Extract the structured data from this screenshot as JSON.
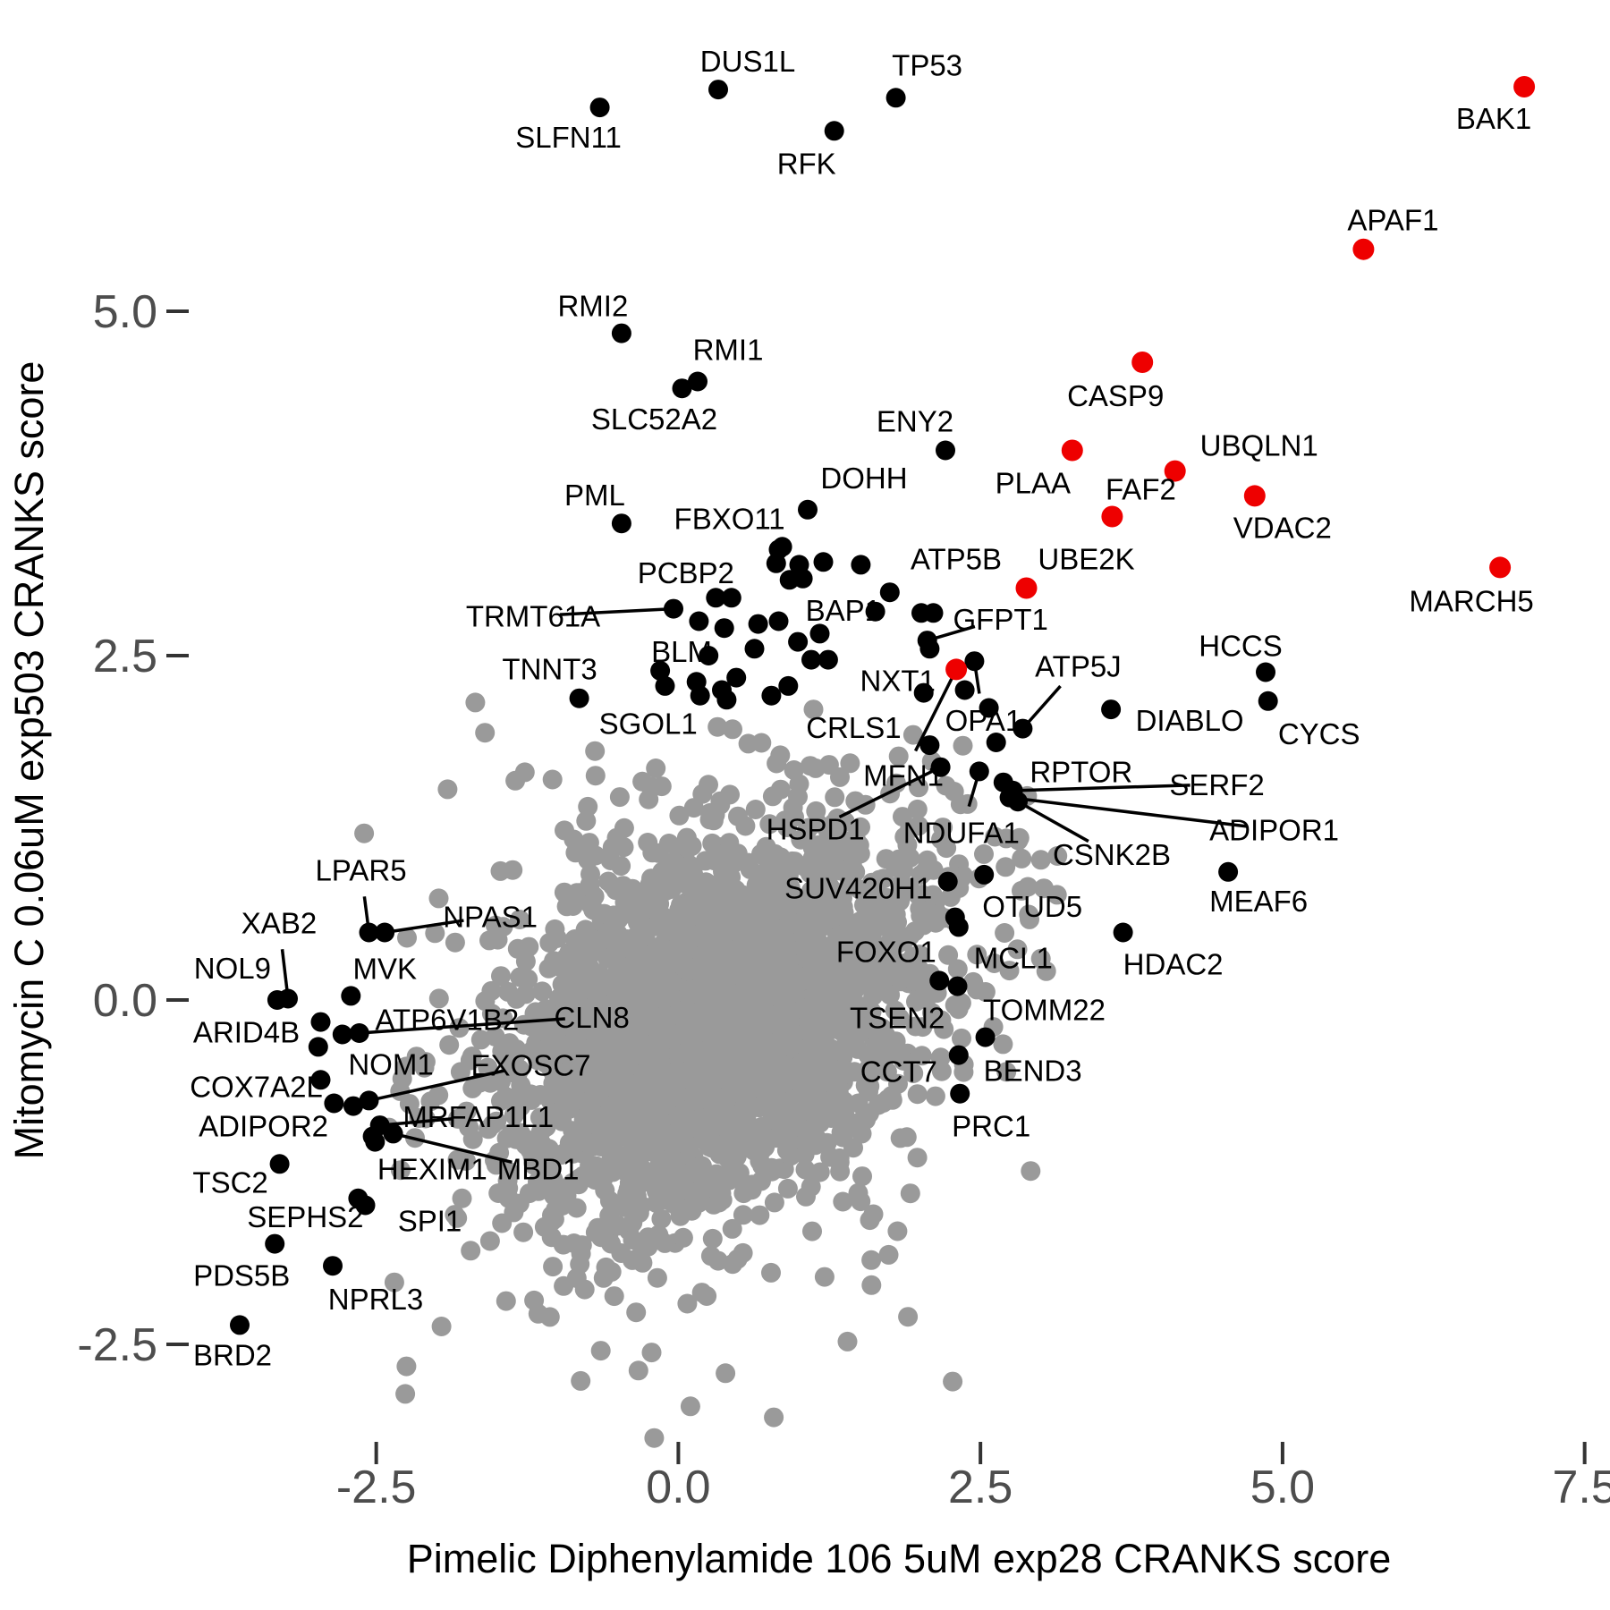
{
  "chart_data": {
    "type": "scatter",
    "title": "",
    "xlabel": "Pimelic Diphenylamide 106 5uM exp28 CRANKS score",
    "ylabel": "Mitomycin C 0.06uM exp503 CRANKS score",
    "xlim": [
      -4.0,
      7.7
    ],
    "ylim": [
      -3.1,
      7.3
    ],
    "grid": false,
    "legend": "none",
    "x_ticks": [
      -2.5,
      0.0,
      2.5,
      5.0,
      7.5
    ],
    "x_tick_labels": [
      "-2.5",
      "0.0",
      "2.5",
      "5.0",
      "7.5"
    ],
    "y_ticks": [
      -2.5,
      0.0,
      2.5,
      5.0
    ],
    "y_tick_labels": [
      "-2.5",
      "0.0",
      "2.5",
      "5.0"
    ],
    "labeled_points": [
      {
        "gene": "DUS1L",
        "x": 0.33,
        "y": 6.61,
        "color": "black",
        "off": [
          33,
          -32
        ],
        "leader": false
      },
      {
        "gene": "SLFN11",
        "x": -0.65,
        "y": 6.48,
        "color": "black",
        "off": [
          -35,
          33
        ],
        "leader": false
      },
      {
        "gene": "TP53",
        "x": 1.8,
        "y": 6.55,
        "color": "black",
        "off": [
          35,
          -37
        ],
        "leader": false
      },
      {
        "gene": "RFK",
        "x": 1.29,
        "y": 6.31,
        "color": "black",
        "off": [
          -31,
          36
        ],
        "leader": false
      },
      {
        "gene": "BAK1",
        "x": 7.0,
        "y": 6.63,
        "color": "red",
        "off": [
          -34,
          35
        ],
        "leader": false
      },
      {
        "gene": "APAF1",
        "x": 5.67,
        "y": 5.45,
        "color": "red",
        "off": [
          33,
          -33
        ],
        "leader": false
      },
      {
        "gene": "RMI2",
        "x": -0.47,
        "y": 4.84,
        "color": "black",
        "off": [
          -32,
          -31
        ],
        "leader": false
      },
      {
        "gene": "RMI1",
        "x": 0.16,
        "y": 4.49,
        "color": "black",
        "off": [
          34,
          -36
        ],
        "leader": false
      },
      {
        "gene": "SLC52A2",
        "x": 0.03,
        "y": 4.44,
        "color": "black",
        "off": [
          -31,
          34
        ],
        "leader": false
      },
      {
        "gene": "CASP9",
        "x": 3.84,
        "y": 4.63,
        "color": "red",
        "off": [
          -30,
          37
        ],
        "leader": false
      },
      {
        "gene": "ENY2",
        "x": 2.21,
        "y": 3.99,
        "color": "black",
        "off": [
          -34,
          -33
        ],
        "leader": false
      },
      {
        "gene": "UBQLN1",
        "x": 4.11,
        "y": 3.84,
        "color": "red",
        "off": [
          94,
          -29
        ],
        "leader": false
      },
      {
        "gene": "PLAA",
        "x": 3.26,
        "y": 3.99,
        "color": "red",
        "off": [
          -44,
          36
        ],
        "leader": false
      },
      {
        "gene": "FAF2",
        "x": 3.59,
        "y": 3.51,
        "color": "red",
        "off": [
          32,
          -31
        ],
        "leader": false
      },
      {
        "gene": "VDAC2",
        "x": 4.77,
        "y": 3.66,
        "color": "red",
        "off": [
          31,
          35
        ],
        "leader": false
      },
      {
        "gene": "DOHH",
        "x": 1.07,
        "y": 3.56,
        "color": "black",
        "off": [
          63,
          -36
        ],
        "leader": false
      },
      {
        "gene": "PML",
        "x": -0.47,
        "y": 3.46,
        "color": "black",
        "off": [
          -30,
          -32
        ],
        "leader": false
      },
      {
        "gene": "FBXO11",
        "x": 0.86,
        "y": 3.29,
        "color": "black",
        "off": [
          -59,
          -32
        ],
        "leader": false
      },
      {
        "gene": "MARCH5",
        "x": 6.8,
        "y": 3.14,
        "color": "red",
        "off": [
          -32,
          37
        ],
        "leader": false
      },
      {
        "gene": "ATP5B",
        "x": 2.01,
        "y": 2.81,
        "color": "black",
        "off": [
          39,
          -61
        ],
        "leader": false
      },
      {
        "gene": "UBE2K",
        "x": 2.88,
        "y": 2.99,
        "color": "red",
        "off": [
          67,
          -33
        ],
        "leader": false
      },
      {
        "gene": "PCBP2",
        "x": 0.81,
        "y": 3.17,
        "color": "black",
        "off": [
          -101,
          10
        ],
        "leader": false
      },
      {
        "gene": "TRMT61A",
        "x": -0.04,
        "y": 2.84,
        "color": "black",
        "off": [
          -157,
          8
        ],
        "leader": true
      },
      {
        "gene": "BAP1",
        "x": 1.75,
        "y": 2.96,
        "color": "black",
        "off": [
          -52,
          20
        ],
        "leader": false
      },
      {
        "gene": "GFPT1",
        "x": 2.06,
        "y": 2.61,
        "color": "black",
        "off": [
          82,
          -24
        ],
        "leader": true
      },
      {
        "gene": "BLM",
        "x": -0.15,
        "y": 2.39,
        "color": "black",
        "off": [
          24,
          -22
        ],
        "leader": false
      },
      {
        "gene": "HCCS",
        "x": 4.86,
        "y": 2.38,
        "color": "black",
        "off": [
          -28,
          -30
        ],
        "leader": false
      },
      {
        "gene": "TNNT3",
        "x": -0.82,
        "y": 2.19,
        "color": "black",
        "off": [
          -33,
          -33
        ],
        "leader": false
      },
      {
        "gene": "NXT1",
        "x": 2.03,
        "y": 2.23,
        "color": "black",
        "off": [
          -29,
          -14
        ],
        "leader": false
      },
      {
        "gene": "ATP5J",
        "x": 2.85,
        "y": 1.97,
        "color": "black",
        "off": [
          62,
          -70
        ],
        "leader": true
      },
      {
        "gene": "SGOL1",
        "x": 0.18,
        "y": 2.21,
        "color": "black",
        "off": [
          -58,
          31
        ],
        "leader": false
      },
      {
        "gene": "CRLS1",
        "x": 2.08,
        "y": 1.85,
        "color": "black",
        "off": [
          -85,
          -20
        ],
        "leader": false
      },
      {
        "gene": "OPA1",
        "x": 2.45,
        "y": 2.46,
        "color": "black",
        "off": [
          10,
          66
        ],
        "leader": true
      },
      {
        "gene": "DIABLO",
        "x": 3.58,
        "y": 2.11,
        "color": "black",
        "off": [
          88,
          12
        ],
        "leader": false
      },
      {
        "gene": "CYCS",
        "x": 4.88,
        "y": 2.17,
        "color": "black",
        "off": [
          57,
          36
        ],
        "leader": false
      },
      {
        "gene": "MFN1",
        "x": 2.3,
        "y": 2.4,
        "color": "red",
        "off": [
          -59,
          118
        ],
        "leader": true
      },
      {
        "gene": "RPTOR",
        "x": 2.69,
        "y": 1.58,
        "color": "black",
        "off": [
          87,
          -12
        ],
        "leader": false
      },
      {
        "gene": "SERF2",
        "x": 2.77,
        "y": 1.52,
        "color": "black",
        "off": [
          228,
          -7
        ],
        "leader": true
      },
      {
        "gene": "HSPD1",
        "x": 2.17,
        "y": 1.69,
        "color": "black",
        "off": [
          -140,
          69
        ],
        "leader": true
      },
      {
        "gene": "NDUFA1",
        "x": 2.49,
        "y": 1.66,
        "color": "black",
        "off": [
          -20,
          68
        ],
        "leader": true
      },
      {
        "gene": "ADIPOR1",
        "x": 2.74,
        "y": 1.47,
        "color": "black",
        "off": [
          296,
          36
        ],
        "leader": true
      },
      {
        "gene": "CSNK2B",
        "x": 2.81,
        "y": 1.44,
        "color": "black",
        "off": [
          105,
          59
        ],
        "leader": true
      },
      {
        "gene": "SUV420H1",
        "x": 2.23,
        "y": 0.86,
        "color": "black",
        "off": [
          -100,
          7
        ],
        "leader": false
      },
      {
        "gene": "OTUD5",
        "x": 2.53,
        "y": 0.91,
        "color": "black",
        "off": [
          54,
          35
        ],
        "leader": false
      },
      {
        "gene": "MEAF6",
        "x": 4.55,
        "y": 0.93,
        "color": "black",
        "off": [
          34,
          32
        ],
        "leader": false
      },
      {
        "gene": "FOXO1",
        "x": 2.29,
        "y": 0.6,
        "color": "black",
        "off": [
          -77,
          38
        ],
        "leader": false
      },
      {
        "gene": "MCL1",
        "x": 2.32,
        "y": 0.53,
        "color": "black",
        "off": [
          61,
          34
        ],
        "leader": false
      },
      {
        "gene": "HDAC2",
        "x": 3.68,
        "y": 0.49,
        "color": "black",
        "off": [
          56,
          35
        ],
        "leader": false
      },
      {
        "gene": "TSEN2",
        "x": 2.16,
        "y": 0.14,
        "color": "black",
        "off": [
          -47,
          41
        ],
        "leader": false
      },
      {
        "gene": "TOMM22",
        "x": 2.31,
        "y": 0.1,
        "color": "black",
        "off": [
          97,
          26
        ],
        "leader": false
      },
      {
        "gene": "CCT7",
        "x": 2.32,
        "y": -0.4,
        "color": "black",
        "off": [
          -67,
          18
        ],
        "leader": false
      },
      {
        "gene": "BEND3",
        "x": 2.54,
        "y": -0.27,
        "color": "black",
        "off": [
          53,
          37
        ],
        "leader": false
      },
      {
        "gene": "PRC1",
        "x": 2.33,
        "y": -0.68,
        "color": "black",
        "off": [
          35,
          36
        ],
        "leader": false
      },
      {
        "gene": "LPAR5",
        "x": -2.56,
        "y": 0.49,
        "color": "black",
        "off": [
          -9,
          -70
        ],
        "leader": true
      },
      {
        "gene": "NPAS1",
        "x": -2.43,
        "y": 0.49,
        "color": "black",
        "off": [
          118,
          -18
        ],
        "leader": true
      },
      {
        "gene": "XAB2",
        "x": -3.23,
        "y": 0.01,
        "color": "black",
        "off": [
          -10,
          -85
        ],
        "leader": true
      },
      {
        "gene": "NOL9",
        "x": -3.32,
        "y": 0.0,
        "color": "black",
        "off": [
          -50,
          -36
        ],
        "leader": false
      },
      {
        "gene": "MVK",
        "x": -2.71,
        "y": 0.03,
        "color": "black",
        "off": [
          38,
          -31
        ],
        "leader": false
      },
      {
        "gene": "ARID4B",
        "x": -2.96,
        "y": -0.16,
        "color": "black",
        "off": [
          -83,
          11
        ],
        "leader": false
      },
      {
        "gene": "ATP6V1B2",
        "x": -2.78,
        "y": -0.25,
        "color": "black",
        "off": [
          117,
          -17
        ],
        "leader": false
      },
      {
        "gene": "CLN8",
        "x": -2.64,
        "y": -0.24,
        "color": "black",
        "off": [
          260,
          -18
        ],
        "leader": true
      },
      {
        "gene": "COX7A2L",
        "x": -2.96,
        "y": -0.58,
        "color": "black",
        "off": [
          -72,
          7
        ],
        "leader": false
      },
      {
        "gene": "NOM1",
        "x": -2.69,
        "y": -0.77,
        "color": "black",
        "off": [
          42,
          -47
        ],
        "leader": false
      },
      {
        "gene": "EXOSC7",
        "x": -2.56,
        "y": -0.73,
        "color": "black",
        "off": [
          181,
          -40
        ],
        "leader": true
      },
      {
        "gene": "ADIPOR2",
        "x": -2.53,
        "y": -0.99,
        "color": "black",
        "off": [
          -122,
          -12
        ],
        "leader": false
      },
      {
        "gene": "MRFAP1L1",
        "x": -2.47,
        "y": -0.91,
        "color": "black",
        "off": [
          110,
          -10
        ],
        "leader": true
      },
      {
        "gene": "HEXIM1",
        "x": -2.51,
        "y": -1.03,
        "color": "black",
        "off": [
          64,
          30
        ],
        "leader": false
      },
      {
        "gene": "MBD1",
        "x": -2.36,
        "y": -0.97,
        "color": "black",
        "off": [
          162,
          39
        ],
        "leader": true
      },
      {
        "gene": "TSC2",
        "x": -3.3,
        "y": -1.19,
        "color": "black",
        "off": [
          -55,
          20
        ],
        "leader": false
      },
      {
        "gene": "SEPHS2",
        "x": -2.65,
        "y": -1.44,
        "color": "black",
        "off": [
          -59,
          20
        ],
        "leader": false
      },
      {
        "gene": "SPI1",
        "x": -2.59,
        "y": -1.49,
        "color": "black",
        "off": [
          72,
          17
        ],
        "leader": false
      },
      {
        "gene": "PDS5B",
        "x": -3.34,
        "y": -1.77,
        "color": "black",
        "off": [
          -37,
          35
        ],
        "leader": false
      },
      {
        "gene": "NPRL3",
        "x": -2.86,
        "y": -1.93,
        "color": "black",
        "off": [
          48,
          37
        ],
        "leader": false
      },
      {
        "gene": "BRD2",
        "x": -3.63,
        "y": -2.36,
        "color": "black",
        "off": [
          -8,
          33
        ],
        "leader": false
      }
    ],
    "extra_black_points": [
      [
        0.17,
        2.75
      ],
      [
        0.38,
        2.7
      ],
      [
        0.44,
        2.92
      ],
      [
        0.66,
        2.73
      ],
      [
        0.83,
        2.75
      ],
      [
        0.99,
        2.6
      ],
      [
        1.17,
        2.66
      ],
      [
        1.2,
        3.18
      ],
      [
        1.51,
        3.16
      ],
      [
        1.63,
        2.82
      ],
      [
        2.11,
        2.81
      ],
      [
        2.08,
        2.55
      ],
      [
        -0.11,
        2.28
      ],
      [
        0.15,
        2.31
      ],
      [
        0.36,
        2.25
      ],
      [
        0.4,
        2.18
      ],
      [
        0.48,
        2.34
      ],
      [
        0.77,
        2.21
      ],
      [
        0.91,
        2.28
      ],
      [
        -2.98,
        -0.34
      ],
      [
        0.83,
        3.27
      ],
      [
        1.0,
        3.16
      ],
      [
        0.92,
        3.05
      ],
      [
        1.03,
        3.06
      ],
      [
        0.31,
        2.92
      ],
      [
        0.63,
        2.55
      ],
      [
        1.1,
        2.47
      ],
      [
        1.24,
        2.47
      ],
      [
        2.37,
        2.25
      ],
      [
        2.57,
        2.12
      ],
      [
        2.63,
        1.87
      ],
      [
        0.25,
        2.5
      ],
      [
        -2.85,
        -0.75
      ]
    ],
    "gray_outlier_points": [
      [
        -0.2,
        -3.18
      ],
      [
        -2.6,
        1.21
      ],
      [
        -1.91,
        1.53
      ],
      [
        -1.68,
        2.16
      ],
      [
        -1.6,
        1.94
      ],
      [
        1.4,
        -2.48
      ],
      [
        2.27,
        -2.77
      ],
      [
        -1.96,
        -2.37
      ],
      [
        -2.25,
        -2.66
      ],
      [
        -2.26,
        -2.86
      ],
      [
        0.79,
        -3.03
      ],
      [
        0.39,
        -2.71
      ],
      [
        -0.33,
        -2.69
      ],
      [
        2.9,
        0.62
      ],
      [
        3.0,
        0.3
      ],
      [
        1.9,
        -2.3
      ],
      [
        -2.35,
        -2.05
      ],
      [
        0.1,
        -2.95
      ]
    ],
    "background_cloud": {
      "comment": "dense unlabeled gray gene cloud, rendered procedurally",
      "seed": 7,
      "n_core": 2400,
      "center": [
        0.33,
        -0.15
      ],
      "sigma": [
        0.83,
        0.7
      ],
      "rho": 0.3,
      "n_fringe": 300,
      "fringe_sigma": [
        1.22,
        1.02
      ]
    }
  },
  "colors": {
    "point_gray": "#9a9a9a",
    "point_black": "#000000",
    "point_red": "#ee0000",
    "tick_label": "#4d4d4d",
    "axis_title": "#000000",
    "background": "#ffffff"
  }
}
